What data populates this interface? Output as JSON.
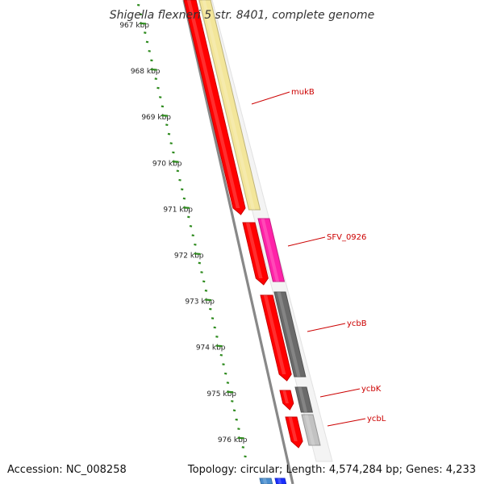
{
  "title": "Shigella flexneri 5 str. 8401, complete genome",
  "footer": {
    "accession": "Accession: NC_008258",
    "summary": "Topology: circular; Length: 4,574,284 bp; Genes: 4,233"
  },
  "colors": {
    "forward_cds": "#ff0000",
    "tick": "#2e8b1e",
    "backbone": "#888888",
    "label": "#cc0000"
  },
  "ruler": {
    "unit": "kbp",
    "labels": [
      "967 kbp",
      "968 kbp",
      "969 kbp",
      "970 kbp",
      "971 kbp",
      "972 kbp",
      "973 kbp",
      "974 kbp",
      "975 kbp",
      "976 kbp"
    ]
  },
  "genes": [
    {
      "name": "mukB",
      "cog_color": "#f3e69a"
    },
    {
      "name": "SFV_0926",
      "cog_color": "#ff22a8"
    },
    {
      "name": "ycbB",
      "cog_color": "#6a6a6a"
    },
    {
      "name": "ycbK",
      "cog_color": "#6a6a6a"
    },
    {
      "name": "ycbL",
      "cog_color": "#c2c2c2"
    }
  ]
}
